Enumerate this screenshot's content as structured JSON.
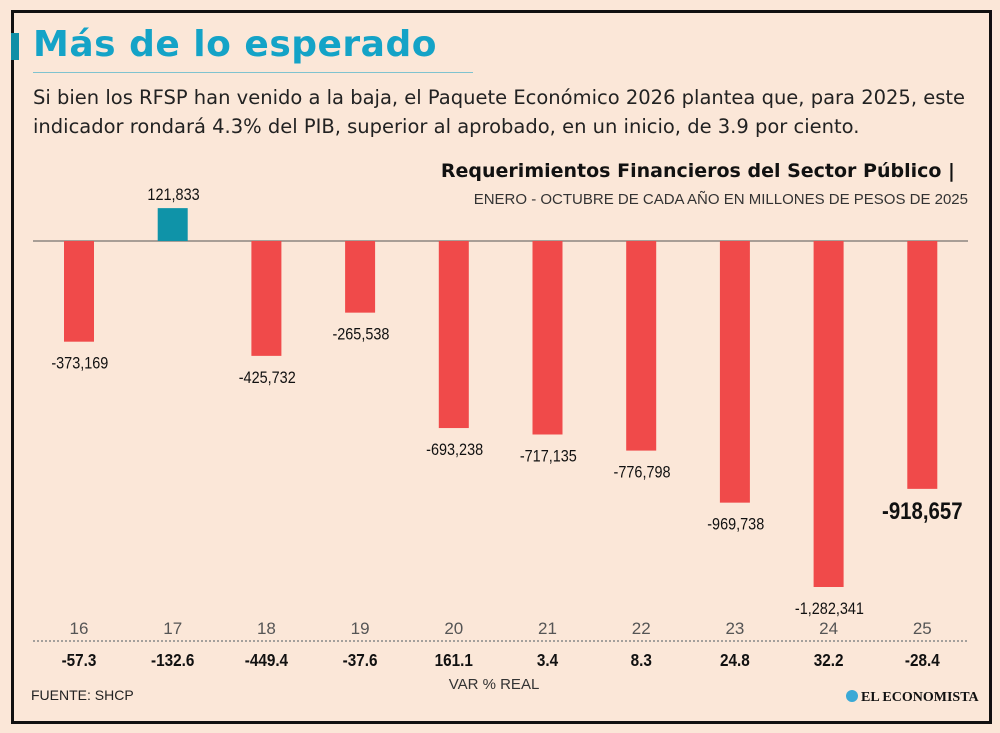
{
  "header": {
    "title": "Más de lo esperado",
    "subtitle": "Si bien los RFSP han venido a la baja, el Paquete Económico 2026 plantea que, para 2025, este indicador rondará 4.3% del PIB, superior al aprobado, en un inicio, de 3.9 por ciento."
  },
  "chart_data": {
    "type": "bar",
    "title": "Requerimientos Financieros del Sector Público |",
    "subtitle": "ENERO - OCTUBRE DE CADA AÑO EN MILLONES DE PESOS DE 2025",
    "categories": [
      "16",
      "17",
      "18",
      "19",
      "20",
      "21",
      "22",
      "23",
      "24",
      "25"
    ],
    "values": [
      -373169,
      121833,
      -425732,
      -265538,
      -693238,
      -717135,
      -776798,
      -969738,
      -1282341,
      -918657
    ],
    "value_labels": [
      "-373,169",
      "121,833",
      "-425,732",
      "-265,538",
      "-693,238",
      "-717,135",
      "-776,798",
      "-969,738",
      "-1,282,341",
      "-918,657"
    ],
    "var_label": "VAR % REAL",
    "var_values": [
      "-57.3",
      "-132.6",
      "-449.4",
      "-37.6",
      "161.1",
      "3.4",
      "8.3",
      "24.8",
      "32.2",
      "-28.4"
    ],
    "colors": {
      "negative": "#f04a4a",
      "positive": "#0f93a8"
    },
    "highlight_last": true
  },
  "footer": {
    "source": "FUENTE: SHCP",
    "logo": "EL ECONOMISTA"
  }
}
